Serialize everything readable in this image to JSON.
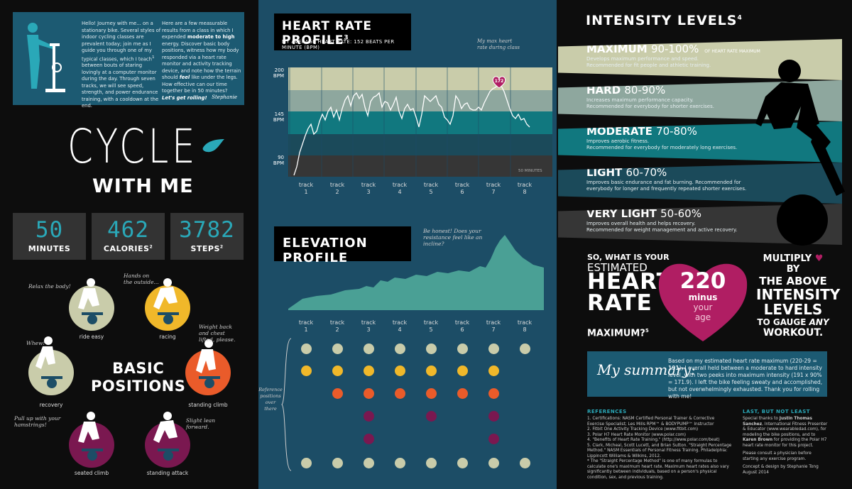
{
  "intro": {
    "p1_a": "Hello! Journey with me... on a stationary bike. Several styles of indoor cycling classes are prevalent today; join me as I guide you through one of my typical classes, which I teach",
    "p1_sup": "1",
    "p1_b": " between bouts of staring lovingly at a computer monitor during the day. Through seven tracks, we will see speed, strength, and power endurance training, with a cooldown at the end.",
    "p2_a": "Here are a few measurable results from a class in which I expended ",
    "p2_bold": "moderate to high",
    "p2_b": " energy. Discover basic body positions, witness how my body responded via a heart rate monitor and activity tracking device, and note how the terrain should ",
    "p2_bold2": "feel",
    "p2_c": " like under the legs. How effective can our time together be in 50 minutes?",
    "p2_cta": "Let's get rolling!",
    "signature": "Stephanie"
  },
  "title": {
    "line1": "CYCLE",
    "line2": "WITH ME"
  },
  "stats": [
    {
      "value": "50",
      "label": "MINUTES",
      "sup": ""
    },
    {
      "value": "462",
      "label": "CALORIES",
      "sup": "2"
    },
    {
      "value": "3782",
      "label": "STEPS",
      "sup": "2"
    }
  ],
  "positions": {
    "heading_l1": "BASIC",
    "heading_l2": "POSITIONS",
    "ride_easy": "ride easy",
    "racing": "racing",
    "recovery": "recovery",
    "standing_climb": "standing climb",
    "seated_climb": "seated climb",
    "standing_attack": "standing attack",
    "note_relax": "Relax the body!",
    "note_hands": "Hands on the outside...",
    "note_whew": "Whew!",
    "note_weight": "Weight back and chest lifted, please.",
    "note_pull": "Pull up with your hamstrings!",
    "note_lean": "Slight lean forward."
  },
  "heart_rate": {
    "title": "HEART RATE PROFILE",
    "title_sup": "3",
    "subtitle": "MY AVERAGE HEART RATE: 152 BEATS PER MINUTE (BPM)",
    "y_200": "200",
    "y_145": "145",
    "y_90": "90",
    "bpm": "BPM",
    "duration": "50 MINUTES",
    "max_note": "My max heart rate during class",
    "max_value": "172",
    "track_word": "track",
    "tracks": [
      "1",
      "2",
      "3",
      "4",
      "5",
      "6",
      "7",
      "8"
    ]
  },
  "elevation": {
    "title": "ELEVATION PROFILE",
    "note": "Be honest! Does your resistance feel like an incline?",
    "ref_note": "Reference positions over there"
  },
  "intensity": {
    "title": "INTENSITY LEVELS",
    "title_sup": "4",
    "levels": [
      {
        "name": "MAXIMUM",
        "range": "90-100%",
        "extra": "OF HEART RATE MAXIMUM",
        "desc": "Develops maximum performance and speed.\nRecommended for fit people and athletic training.",
        "color": "#c9ccaa"
      },
      {
        "name": "HARD",
        "range": "80-90%",
        "extra": "",
        "desc": "Increases maximum performance capacity.\nRecommended for everybody for shorter exercises.",
        "color": "#8ea79e"
      },
      {
        "name": "MODERATE",
        "range": "70-80%",
        "extra": "",
        "desc": "Improves aerobic fitness.\nRecommended for everybody for moderately long exercises.",
        "color": "#11787f"
      },
      {
        "name": "LIGHT",
        "range": "60-70%",
        "extra": "",
        "desc": "Improves basic endurance and fat burning. Recommended for\neverybody for longer and frequently repeated shorter exercises.",
        "color": "#1b4a5a"
      },
      {
        "name": "VERY LIGHT",
        "range": "50-60%",
        "extra": "",
        "desc": "Improves overall health and helps recovery.\nRecommended for weight management and active recovery.",
        "color": "#363636"
      }
    ]
  },
  "estimate": {
    "q1": "SO, WHAT IS YOUR",
    "q2": "ESTIMATED",
    "big1": "HEART",
    "big2": "RATE",
    "q3": "MAXIMUM?",
    "q3_sup": "5",
    "heart_num": "220",
    "heart_minus": "minus",
    "heart_your": "your",
    "heart_age": "age",
    "mult1": "MULTIPLY",
    "mult2": "BY",
    "mult3": "THE ABOVE",
    "mult4": "INTENSITY",
    "mult5": "LEVELS",
    "mult6": "TO GAUGE",
    "mult7": "ANY",
    "mult8": "WORKOUT."
  },
  "summary": {
    "label": "My summary:",
    "text_a": "Based on my estimated heart rate maximum (220-29 = ",
    "text_bold": "191",
    "text_b": "), I overall held between a moderate to hard intensity level, with two peeks into maximum intensity (191 x 90% = 171.9). I left the bike feeling sweaty and accomplished, but not overwhelmingly exhausted. Thank you for rolling with me!"
  },
  "references": {
    "heading": "REFERENCES",
    "items": [
      "1. Certifications: NASM Certified Personal Trainer & Corrective Exercise Specialist; Les Mills RPM™ & BODYPUMP™ Instructor",
      "2. Fitbit One Activity Tracking Device (www.fitbit.com)",
      "3. Polar H7 Heart Rate Monitor (www.polar.com)",
      "4. \"Benefits of Heart Rate Training.\" (http://www.polar.com/beat)",
      "5. Clark, Micheal, Scott Lucett, and Brian Sutton. \"Straight Percentage Method.\" NASM Essentials of Personal Fitness Training. Philadelphia: Lippincott Williams & Wilkins, 2012.",
      "* The \"Straight Percentage Method\" is one of many formulas to calculate one's maximum heart rate. Maximum heart rates also vary significantly between individuals, based on a person's physical condition, sex, and previous training."
    ]
  },
  "last": {
    "heading": "LAST, BUT NOT LEAST",
    "t1": "Special thanks to ",
    "n1": "Justin Thomas Sanchez",
    "t2": ", International Fitness Presenter & Educator (www.wearabledad.com), for modeling the bike positions, and to ",
    "n2": "Karen Brown",
    "t3": " for providing the Polar H7 heart rate monitor for this project.",
    "consult": "Please consult a physician before starting any exercise program.",
    "credit1": "Concept & design by Stephanie Tong",
    "credit2": "August 2014"
  },
  "colors": {
    "teal": "#2aa8b8",
    "magenta": "#b01e63",
    "navy": "#1c4d66"
  }
}
